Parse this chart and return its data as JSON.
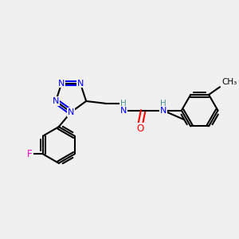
{
  "background_color": "#f0f0f0",
  "atom_colors": {
    "N": "#0000ff",
    "O": "#ff0000",
    "F": "#ff00cc",
    "C": "#000000",
    "H_N": "#4a9090"
  },
  "bond_color": "#000000",
  "bond_width": 1.5,
  "figsize": [
    3.0,
    3.0
  ],
  "dpi": 100,
  "xlim": [
    0,
    10
  ],
  "ylim": [
    0,
    10
  ]
}
